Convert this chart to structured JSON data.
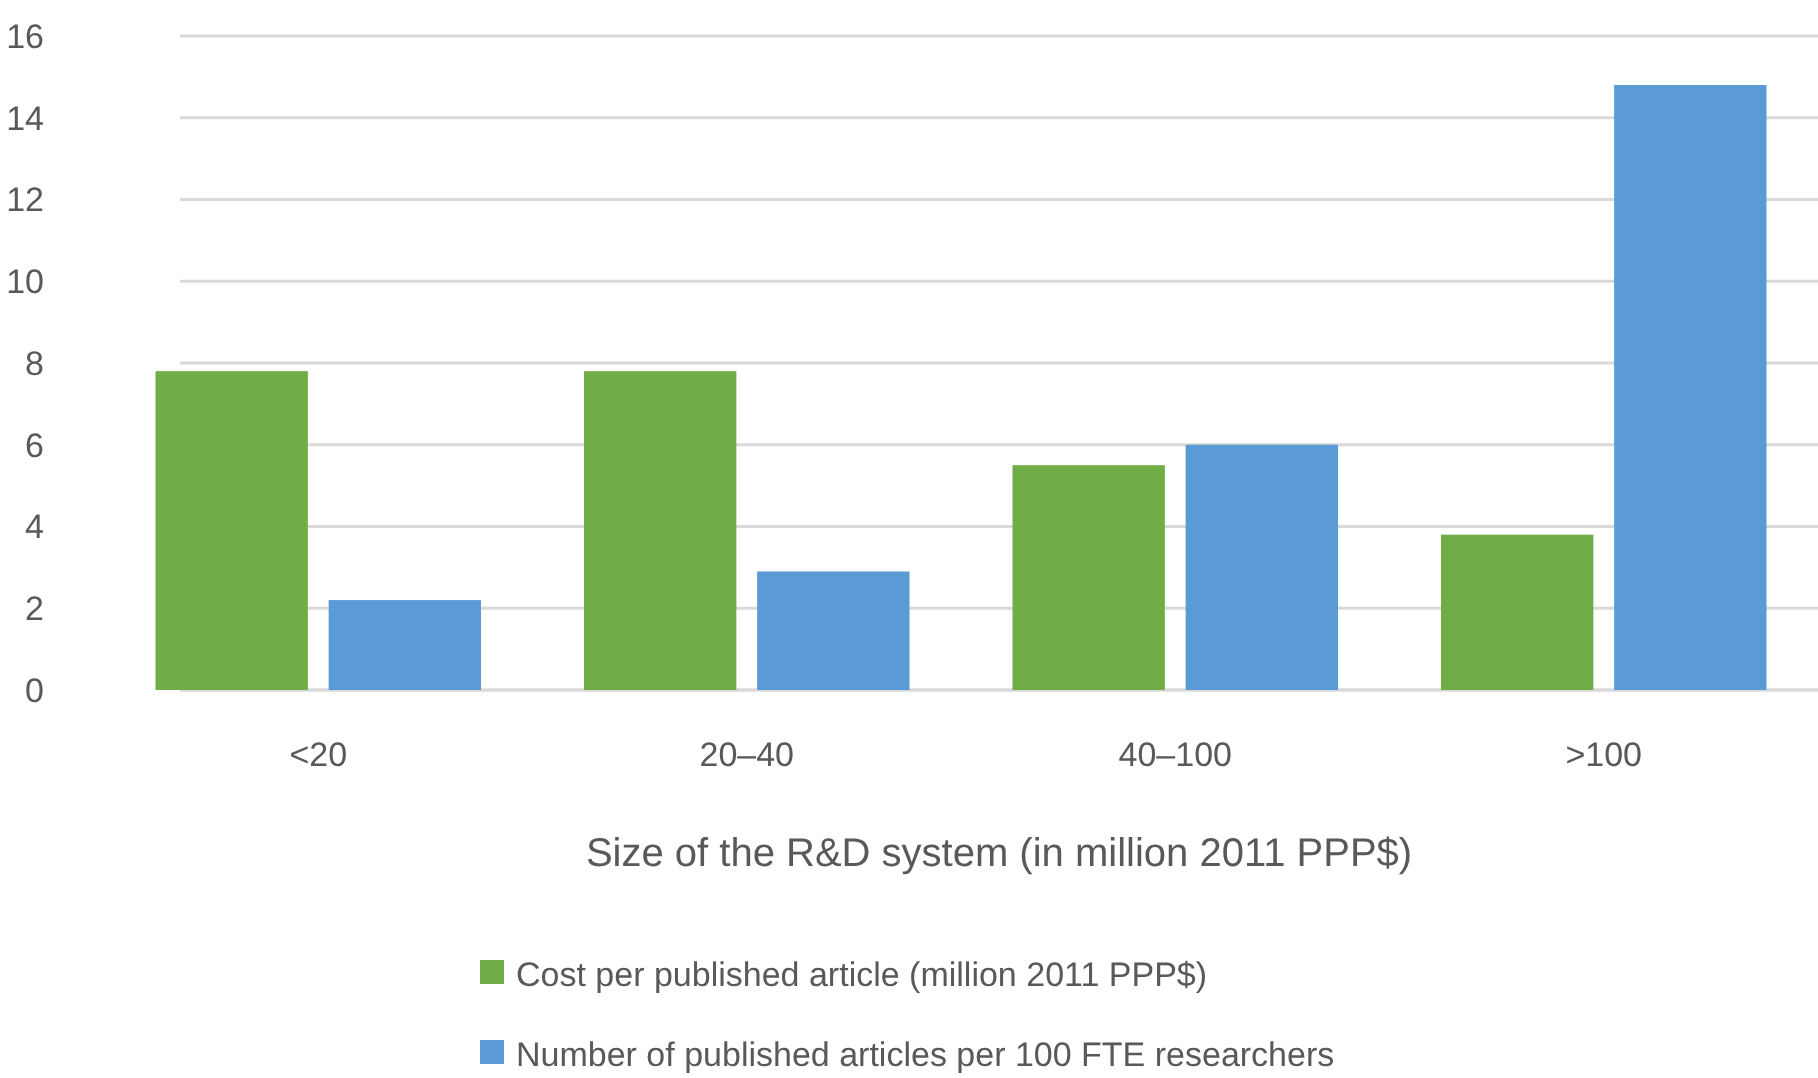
{
  "chart_data": {
    "type": "bar",
    "xlabel": "Size of the R&D system (in million 2011 PPP$)",
    "categories": [
      "<20",
      "20–40",
      "40–100",
      ">100"
    ],
    "series": [
      {
        "name": "Cost per published article (million 2011 PPP$)",
        "color": "#70ad47",
        "values": [
          7.8,
          7.8,
          5.5,
          3.8
        ]
      },
      {
        "name": "Number of published articles per 100 FTE researchers",
        "color": "#5b9bd5",
        "values": [
          2.2,
          2.9,
          6.0,
          14.8
        ]
      }
    ],
    "ylim": [
      0,
      16
    ],
    "yticks": [
      0,
      2,
      4,
      6,
      8,
      10,
      12,
      14,
      16
    ],
    "grid": "y",
    "legend": "bottom"
  }
}
